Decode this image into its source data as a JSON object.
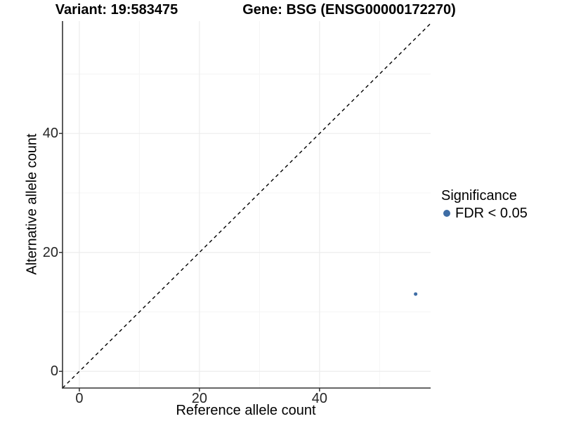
{
  "titles": {
    "variant": "Variant: 19:583475",
    "gene": "Gene: BSG (ENSG00000172270)"
  },
  "chart_data": {
    "type": "scatter",
    "title_left": "Variant: 19:583475",
    "title_right": "Gene: BSG (ENSG00000172270)",
    "xlabel": "Reference allele count",
    "ylabel": "Alternative allele count",
    "xlim": [
      -2.8,
      58.5
    ],
    "ylim": [
      -2.8,
      58.9
    ],
    "xticks_major": [
      0,
      20,
      40
    ],
    "yticks_major": [
      0,
      20,
      40
    ],
    "xticks_minor": [
      10,
      30,
      50
    ],
    "yticks_minor": [
      10,
      30,
      50
    ],
    "grid": true,
    "reference_line": {
      "kind": "abline",
      "slope": 1,
      "intercept": 0,
      "style": "dashed",
      "color": "#000000"
    },
    "series": [
      {
        "name": "FDR < 0.05",
        "color": "#3e6da5",
        "point_radius": 2.5,
        "points": [
          {
            "x": 56,
            "y": 13
          }
        ]
      }
    ],
    "legend": {
      "title": "Significance",
      "position": "right",
      "items": [
        {
          "label": "FDR < 0.05",
          "color": "#3e6da5"
        }
      ]
    },
    "colors": {
      "background": "#ffffff",
      "grid_major": "#ececec",
      "grid_minor": "#f4f4f4",
      "axis_line": "#333333",
      "tick_text": "#262626",
      "point": "#3e6da5",
      "dashed_line": "#000000"
    }
  }
}
